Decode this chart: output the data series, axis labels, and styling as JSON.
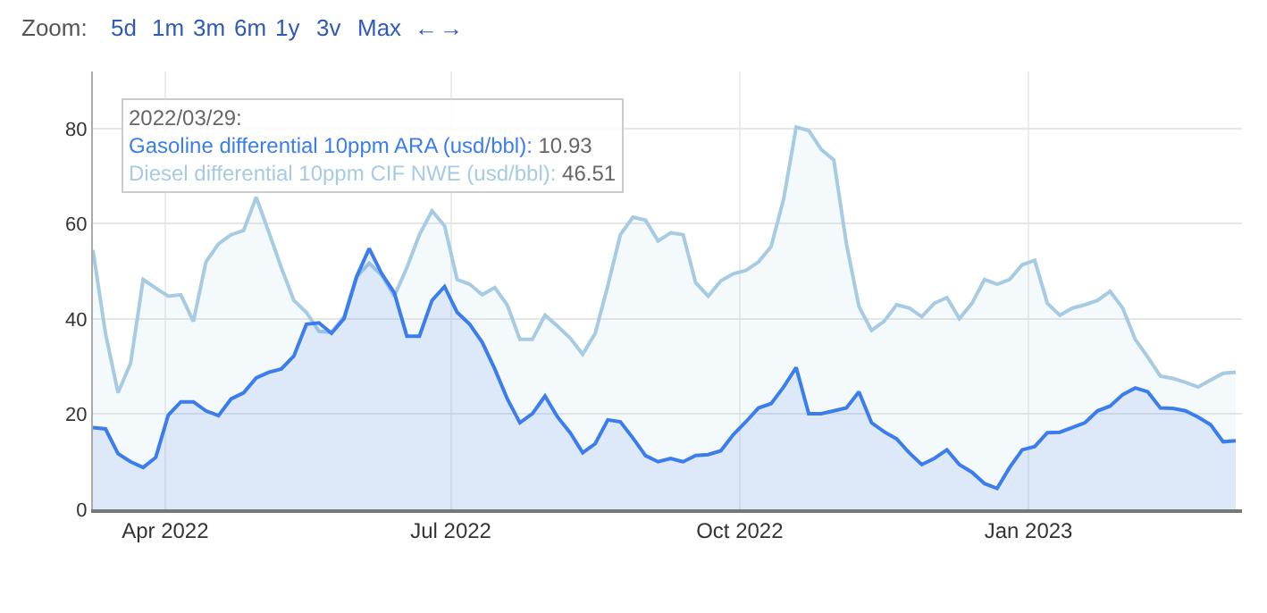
{
  "chart_data": {
    "type": "area",
    "x": [
      "2022-03-09",
      "2022-03-13",
      "2022-03-17",
      "2022-03-21",
      "2022-03-25",
      "2022-03-29",
      "2022-04-02",
      "2022-04-06",
      "2022-04-10",
      "2022-04-14",
      "2022-04-18",
      "2022-04-22",
      "2022-04-26",
      "2022-04-30",
      "2022-05-04",
      "2022-05-08",
      "2022-05-12",
      "2022-05-16",
      "2022-05-20",
      "2022-05-24",
      "2022-05-28",
      "2022-06-01",
      "2022-06-05",
      "2022-06-09",
      "2022-06-13",
      "2022-06-17",
      "2022-06-21",
      "2022-06-25",
      "2022-06-29",
      "2022-07-03",
      "2022-07-07",
      "2022-07-11",
      "2022-07-15",
      "2022-07-19",
      "2022-07-23",
      "2022-07-27",
      "2022-07-31",
      "2022-08-04",
      "2022-08-08",
      "2022-08-12",
      "2022-08-16",
      "2022-08-20",
      "2022-08-24",
      "2022-08-28",
      "2022-09-01",
      "2022-09-05",
      "2022-09-09",
      "2022-09-13",
      "2022-09-17",
      "2022-09-21",
      "2022-09-25",
      "2022-09-29",
      "2022-10-03",
      "2022-10-07",
      "2022-10-11",
      "2022-10-15",
      "2022-10-19",
      "2022-10-23",
      "2022-10-27",
      "2022-10-31",
      "2022-11-04",
      "2022-11-08",
      "2022-11-12",
      "2022-11-16",
      "2022-11-20",
      "2022-11-24",
      "2022-11-28",
      "2022-12-02",
      "2022-12-06",
      "2022-12-10",
      "2022-12-14",
      "2022-12-18",
      "2022-12-22",
      "2022-12-26",
      "2022-12-30",
      "2023-01-03",
      "2023-01-07",
      "2023-01-11",
      "2023-01-15",
      "2023-01-19",
      "2023-01-23",
      "2023-01-27",
      "2023-01-31",
      "2023-02-04",
      "2023-02-08",
      "2023-02-12",
      "2023-02-16",
      "2023-02-20",
      "2023-02-24",
      "2023-02-28",
      "2023-03-04",
      "2023-03-08"
    ],
    "series": [
      {
        "color": "#a6cbe2",
        "values": [
          54.5,
          37.0,
          24.5,
          30.7,
          48.3,
          46.5,
          44.8,
          45.1,
          39.5,
          52.0,
          55.8,
          57.7,
          58.6,
          65.6,
          58.3,
          50.8,
          43.9,
          41.4,
          37.4,
          37.2,
          40.5,
          48.9,
          51.7,
          49.2,
          44.8,
          50.8,
          57.7,
          62.7,
          59.6,
          48.3,
          47.3,
          45.1,
          46.6,
          42.9,
          35.7,
          35.7,
          40.8,
          38.5,
          36.0,
          32.6,
          37.0,
          47.0,
          57.7,
          61.4,
          60.8,
          56.4,
          58.1,
          57.7,
          47.6,
          44.8,
          48.0,
          49.5,
          50.2,
          52.0,
          55.2,
          65.2,
          80.3,
          79.6,
          75.6,
          73.4,
          55.8,
          42.6,
          37.6,
          39.5,
          43.0,
          42.3,
          40.5,
          43.3,
          44.5,
          40.1,
          43.3,
          48.3,
          47.3,
          48.3,
          51.4,
          52.3,
          43.3,
          40.8,
          42.3,
          43.0,
          43.9,
          45.8,
          42.3,
          35.7,
          32.0,
          28.0,
          27.5,
          26.7,
          25.7,
          27.2,
          28.6,
          28.8
        ]
      },
      {
        "color": "#3b7ded",
        "values": [
          17.2,
          16.9,
          11.7,
          10.0,
          8.8,
          10.9,
          19.8,
          22.6,
          22.6,
          20.7,
          19.7,
          23.2,
          24.5,
          27.6,
          28.8,
          29.5,
          32.2,
          38.9,
          39.2,
          37.0,
          40.1,
          48.9,
          54.8,
          49.5,
          45.5,
          36.4,
          36.4,
          43.9,
          46.8,
          41.4,
          38.9,
          35.1,
          29.5,
          23.2,
          18.2,
          20.1,
          23.8,
          19.4,
          16.1,
          11.9,
          13.8,
          18.8,
          18.4,
          15.0,
          11.3,
          10.0,
          10.7,
          10.0,
          11.3,
          11.5,
          12.3,
          15.7,
          18.4,
          21.3,
          22.2,
          25.7,
          29.8,
          20.1,
          20.1,
          20.7,
          21.3,
          24.7,
          18.2,
          16.3,
          14.8,
          11.9,
          9.4,
          10.7,
          12.5,
          9.4,
          7.8,
          5.4,
          4.4,
          8.8,
          12.5,
          13.2,
          16.1,
          16.2,
          17.2,
          18.2,
          20.7,
          21.7,
          24.1,
          25.5,
          24.7,
          21.3,
          21.2,
          20.7,
          19.4,
          17.8,
          14.2,
          14.4
        ]
      }
    ],
    "xlim": [
      "2022-03-09",
      "2023-03-10"
    ],
    "xticks": [
      {
        "value": "2022-04-01",
        "label": "Apr 2022"
      },
      {
        "value": "2022-07-01",
        "label": "Jul 2022"
      },
      {
        "value": "2022-10-01",
        "label": "Oct 2022"
      },
      {
        "value": "2023-01-01",
        "label": "Jan 2023"
      }
    ],
    "ylim": [
      0,
      92
    ],
    "yticks": [
      0,
      20,
      40,
      60,
      80
    ],
    "grid": true,
    "legend": false,
    "annotations": [
      "Zoom:",
      "5d",
      "1m",
      "3m",
      "6m",
      "1y",
      "3v",
      "Max",
      "←",
      "→",
      "2022/03/29:",
      "Gasoline differential 10ppm ARA (usd/bbl): 10.93",
      "Diesel differential 10ppm CIF NWE (usd/bbl): 46.51"
    ]
  }
}
